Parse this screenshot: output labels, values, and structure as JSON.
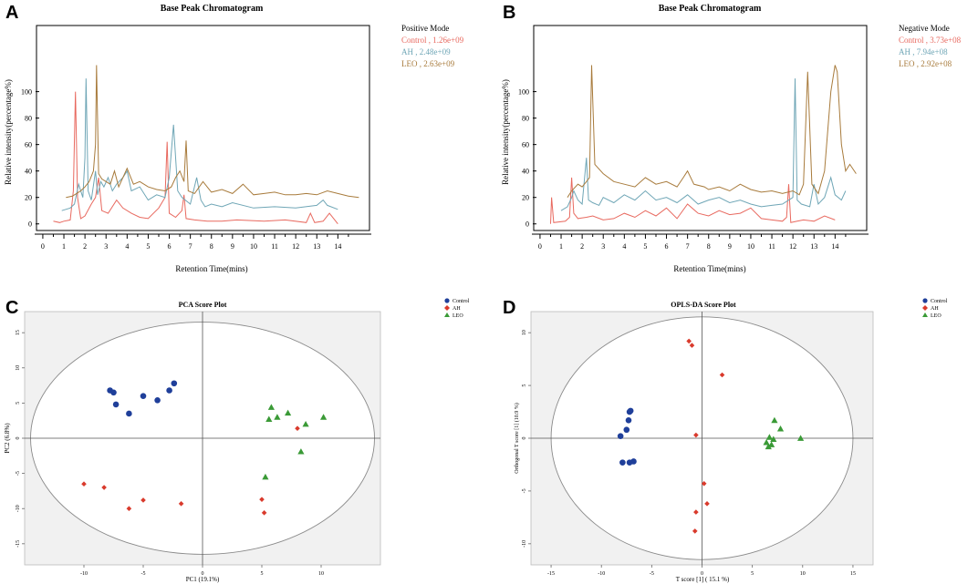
{
  "chart_data": [
    {
      "panel": "A",
      "type": "line",
      "title": "Base Peak Chromatogram",
      "mode": "Positive Mode",
      "xlabel": "Retention Time(mins)",
      "ylabel": "Relative intensity(percentage%)",
      "xlim": [
        -0.3,
        15.5
      ],
      "ylim": [
        -5,
        150
      ],
      "xticks": [
        "0",
        "1",
        "2",
        "3",
        "4",
        "5",
        "6",
        "7",
        "8",
        "9",
        "10",
        "11",
        "12",
        "13",
        "14"
      ],
      "yticks": [
        "0",
        "20",
        "40",
        "60",
        "80",
        "100"
      ],
      "series": [
        {
          "name": "Control",
          "label": "Control , 1.26e+09",
          "color": "#e8695f",
          "offset": 0,
          "x": [
            0.5,
            0.8,
            1.0,
            1.3,
            1.45,
            1.55,
            1.65,
            1.8,
            2.0,
            2.3,
            2.5,
            2.65,
            2.8,
            3.1,
            3.5,
            3.8,
            4.2,
            4.6,
            5.0,
            5.5,
            5.8,
            5.9,
            6.0,
            6.3,
            6.6,
            6.7,
            6.8,
            7.2,
            7.8,
            8.5,
            9.2,
            10.5,
            11.5,
            12.5,
            12.7,
            12.9,
            13.3,
            13.6,
            14.0
          ],
          "y": [
            2,
            1,
            2,
            3,
            25,
            100,
            20,
            4,
            6,
            15,
            20,
            35,
            10,
            8,
            18,
            12,
            8,
            5,
            4,
            12,
            20,
            62,
            8,
            5,
            10,
            22,
            4,
            3,
            2,
            2,
            3,
            2,
            3,
            1,
            8,
            1,
            2,
            8,
            0
          ]
        },
        {
          "name": "AH",
          "label": "AH , 2.48e+09",
          "color": "#6fa6b6",
          "offset": 10,
          "x": [
            0.9,
            1.3,
            1.5,
            1.7,
            1.9,
            2.0,
            2.05,
            2.15,
            2.3,
            2.5,
            2.6,
            2.75,
            2.9,
            3.1,
            3.3,
            3.5,
            3.8,
            4.0,
            4.2,
            4.6,
            5.0,
            5.4,
            5.8,
            6.0,
            6.2,
            6.4,
            6.6,
            7.0,
            7.3,
            7.5,
            7.7,
            8.0,
            8.5,
            9.0,
            10.0,
            11.0,
            12.0,
            13.0,
            13.3,
            13.5,
            14.0
          ],
          "y": [
            0,
            2,
            5,
            20,
            10,
            40,
            100,
            15,
            8,
            30,
            12,
            22,
            18,
            25,
            15,
            20,
            25,
            30,
            15,
            18,
            8,
            12,
            10,
            25,
            65,
            15,
            10,
            5,
            25,
            8,
            3,
            5,
            3,
            6,
            2,
            3,
            2,
            4,
            8,
            4,
            1
          ]
        },
        {
          "name": "LEO",
          "label": "LEO , 2.63e+09",
          "color": "#a87b3c",
          "offset": 20,
          "x": [
            1.1,
            1.4,
            1.6,
            1.8,
            2.0,
            2.2,
            2.4,
            2.5,
            2.55,
            2.65,
            2.8,
            3.0,
            3.2,
            3.4,
            3.6,
            3.8,
            4.0,
            4.3,
            4.6,
            5.0,
            5.4,
            5.8,
            6.1,
            6.3,
            6.5,
            6.7,
            6.8,
            6.9,
            7.2,
            7.6,
            8.0,
            8.5,
            9.0,
            9.5,
            10.0,
            10.5,
            11.0,
            11.5,
            12.0,
            12.5,
            13.0,
            13.5,
            14.0,
            14.5,
            15.0
          ],
          "y": [
            0,
            1,
            3,
            5,
            8,
            12,
            20,
            40,
            100,
            18,
            14,
            12,
            10,
            20,
            8,
            15,
            22,
            10,
            12,
            8,
            6,
            5,
            8,
            15,
            20,
            12,
            43,
            5,
            3,
            12,
            4,
            6,
            3,
            10,
            2,
            3,
            4,
            2,
            2,
            3,
            2,
            5,
            3,
            1,
            0
          ]
        }
      ]
    },
    {
      "panel": "B",
      "type": "line",
      "title": "Base Peak Chromatogram",
      "mode": "Negative Mode",
      "xlabel": "Retention Time(mins)",
      "ylabel": "Relative intensity(percentage%)",
      "xlim": [
        -0.3,
        15.5
      ],
      "ylim": [
        -5,
        150
      ],
      "xticks": [
        "0",
        "1",
        "2",
        "3",
        "4",
        "5",
        "6",
        "7",
        "8",
        "9",
        "10",
        "11",
        "12",
        "13",
        "14"
      ],
      "yticks": [
        "0",
        "20",
        "40",
        "60",
        "80",
        "100"
      ],
      "series": [
        {
          "name": "Control",
          "label": "Control , 3.73e+08",
          "color": "#e8695f",
          "offset": 0,
          "x": [
            0.5,
            0.55,
            0.65,
            1.2,
            1.4,
            1.5,
            1.6,
            1.8,
            2.2,
            2.5,
            3.0,
            3.5,
            4.0,
            4.5,
            5.0,
            5.5,
            6.0,
            6.5,
            7.0,
            7.5,
            8.0,
            8.5,
            9.0,
            9.5,
            10.0,
            10.5,
            11.0,
            11.5,
            11.7,
            11.8,
            11.9,
            12.2,
            12.5,
            13.0,
            13.5,
            14.0
          ],
          "y": [
            0,
            20,
            1,
            2,
            5,
            35,
            8,
            4,
            5,
            6,
            3,
            4,
            8,
            5,
            10,
            6,
            12,
            4,
            15,
            8,
            6,
            10,
            7,
            8,
            12,
            4,
            3,
            2,
            5,
            30,
            1,
            2,
            3,
            2,
            6,
            3
          ]
        },
        {
          "name": "AH",
          "label": "AH , 7.94e+08",
          "color": "#6fa6b6",
          "offset": 10,
          "x": [
            1.0,
            1.3,
            1.5,
            1.6,
            1.8,
            2.0,
            2.2,
            2.3,
            2.5,
            2.8,
            3.0,
            3.5,
            4.0,
            4.5,
            5.0,
            5.5,
            6.0,
            6.5,
            7.0,
            7.5,
            8.0,
            8.5,
            9.0,
            9.5,
            10.0,
            10.5,
            11.0,
            11.5,
            12.0,
            12.1,
            12.2,
            12.4,
            12.8,
            13.0,
            13.2,
            13.5,
            13.8,
            14.0,
            14.3,
            14.5
          ],
          "y": [
            0,
            3,
            10,
            15,
            8,
            5,
            40,
            8,
            6,
            4,
            10,
            6,
            12,
            8,
            15,
            8,
            10,
            6,
            12,
            5,
            8,
            10,
            6,
            8,
            5,
            3,
            4,
            5,
            10,
            100,
            8,
            5,
            3,
            20,
            5,
            10,
            25,
            12,
            8,
            15
          ]
        },
        {
          "name": "LEO",
          "label": "LEO , 2.92e+08",
          "color": "#a87b3c",
          "offset": 20,
          "x": [
            1.3,
            1.5,
            1.8,
            2.0,
            2.2,
            2.35,
            2.45,
            2.6,
            3.0,
            3.5,
            4.0,
            4.5,
            5.0,
            5.5,
            6.0,
            6.5,
            6.8,
            7.0,
            7.3,
            7.8,
            8.0,
            8.5,
            9.0,
            9.5,
            10.0,
            10.5,
            11.0,
            11.5,
            12.0,
            12.3,
            12.5,
            12.7,
            12.9,
            13.2,
            13.5,
            13.8,
            14.0,
            14.1,
            14.3,
            14.5,
            14.7,
            15.0
          ],
          "y": [
            0,
            5,
            10,
            8,
            12,
            15,
            100,
            25,
            18,
            12,
            10,
            8,
            15,
            10,
            12,
            8,
            15,
            20,
            10,
            8,
            6,
            8,
            5,
            10,
            6,
            4,
            5,
            3,
            5,
            2,
            10,
            95,
            10,
            3,
            20,
            80,
            100,
            95,
            40,
            20,
            25,
            18
          ]
        }
      ]
    },
    {
      "panel": "C",
      "type": "scatter",
      "title": "PCA Score Plot",
      "xlabel": "PC1 (19.1%)",
      "ylabel": "PC2 (6.8%)",
      "xlim": [
        -15,
        15
      ],
      "ylim": [
        -18,
        18
      ],
      "xticks": [
        -10,
        -5,
        0,
        5,
        10
      ],
      "yticks": [
        -15,
        -10,
        -5,
        0,
        5,
        10,
        15
      ],
      "ellipse": {
        "rx": 14.5,
        "ry": 16.5
      },
      "series": [
        {
          "name": "Control",
          "color": "#1f3f9a",
          "marker": "circle",
          "points": [
            [
              -7.8,
              6.8
            ],
            [
              -7.5,
              6.5
            ],
            [
              -7.3,
              4.8
            ],
            [
              -6.2,
              3.5
            ],
            [
              -5,
              6
            ],
            [
              -3.8,
              5.4
            ],
            [
              -2.8,
              6.8
            ],
            [
              -2.4,
              7.8
            ]
          ]
        },
        {
          "name": "AH",
          "color": "#d93a2c",
          "marker": "diamond",
          "points": [
            [
              -10,
              -6.5
            ],
            [
              -8.3,
              -7
            ],
            [
              -6.2,
              -10
            ],
            [
              -5.0,
              -8.8
            ],
            [
              -1.8,
              -9.3
            ],
            [
              5.0,
              -8.7
            ],
            [
              5.2,
              -10.6
            ],
            [
              8.0,
              1.4
            ]
          ]
        },
        {
          "name": "LEO",
          "color": "#3a9a36",
          "marker": "triangle",
          "points": [
            [
              5.8,
              4.4
            ],
            [
              5.6,
              2.7
            ],
            [
              6.3,
              3.0
            ],
            [
              7.2,
              3.6
            ],
            [
              8.7,
              2.0
            ],
            [
              10.2,
              3.0
            ],
            [
              8.3,
              -1.9
            ],
            [
              5.3,
              -5.5
            ]
          ]
        }
      ]
    },
    {
      "panel": "D",
      "type": "scatter",
      "title": "OPLS-DA Score Plot",
      "xlabel": "T score [1] ( 15.1 %)",
      "ylabel": "Orthogonal T score [1] (10.9 %)",
      "xlim": [
        -17,
        17
      ],
      "ylim": [
        -12,
        12
      ],
      "xticks": [
        -15,
        -10,
        -5,
        0,
        5,
        10,
        15
      ],
      "yticks": [
        -10,
        -5,
        0,
        5,
        10
      ],
      "ellipse": {
        "rx": 15,
        "ry": 11.5
      },
      "series": [
        {
          "name": "Control",
          "color": "#1f3f9a",
          "marker": "circle",
          "points": [
            [
              -7.2,
              2.5
            ],
            [
              -7.3,
              1.7
            ],
            [
              -7.5,
              0.8
            ],
            [
              -8.1,
              0.2
            ],
            [
              -7.9,
              -2.3
            ],
            [
              -7.2,
              -2.3
            ],
            [
              -6.8,
              -2.2
            ],
            [
              -7.1,
              2.6
            ]
          ]
        },
        {
          "name": "AH",
          "color": "#d93a2c",
          "marker": "diamond",
          "points": [
            [
              -1.3,
              9.2
            ],
            [
              -1.0,
              8.8
            ],
            [
              2.0,
              6.0
            ],
            [
              -0.6,
              0.3
            ],
            [
              0.2,
              -4.3
            ],
            [
              0.5,
              -6.2
            ],
            [
              -0.6,
              -7.0
            ],
            [
              -0.7,
              -8.8
            ]
          ]
        },
        {
          "name": "LEO",
          "color": "#3a9a36",
          "marker": "triangle",
          "points": [
            [
              7.2,
              1.7
            ],
            [
              7.8,
              0.9
            ],
            [
              6.7,
              0.1
            ],
            [
              7.1,
              -0.1
            ],
            [
              9.8,
              0.0
            ],
            [
              6.4,
              -0.4
            ],
            [
              6.9,
              -0.6
            ],
            [
              6.6,
              -0.8
            ]
          ]
        }
      ]
    }
  ]
}
